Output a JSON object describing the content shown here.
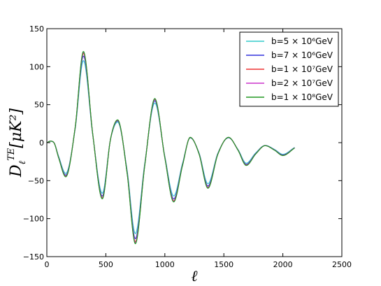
{
  "chart_data": {
    "type": "line",
    "title": "",
    "xlabel": "ℓ",
    "ylabel_main": "D",
    "ylabel_sub": "ℓ",
    "ylabel_sup": "TE",
    "ylabel_unit": "[μK²]",
    "xlim": [
      0,
      2500
    ],
    "ylim": [
      -150,
      150
    ],
    "x_ticks": [
      "0",
      "500",
      "1000",
      "1500",
      "2000",
      "2500"
    ],
    "y_ticks": [
      "150",
      "100",
      "50",
      "0",
      "−50",
      "−100",
      "−150"
    ],
    "grid": false,
    "legend_position": "top-right",
    "series": [
      {
        "name": "b=5 × 10⁶GeV",
        "color": "#33cccc",
        "amp_scale": 0.9
      },
      {
        "name": "b=7 × 10⁶GeV",
        "color": "#3333dd",
        "amp_scale": 0.95
      },
      {
        "name": "b=1 × 10⁷GeV",
        "color": "#ee3333",
        "amp_scale": 0.98
      },
      {
        "name": "b=2 × 10⁷GeV",
        "color": "#cc33cc",
        "amp_scale": 0.99
      },
      {
        "name": "b=1 × 10⁸GeV",
        "color": "#229922",
        "amp_scale": 1.0
      }
    ],
    "x": [
      2,
      30,
      60,
      100,
      160,
      240,
      310,
      390,
      470,
      540,
      600,
      680,
      750,
      830,
      915,
      1000,
      1075,
      1150,
      1215,
      1290,
      1365,
      1450,
      1540,
      1620,
      1690,
      1770,
      1850,
      1930,
      2000,
      2100
    ],
    "y": [
      0,
      2,
      0,
      -20,
      -45,
      20,
      120,
      10,
      -74,
      5,
      30,
      -40,
      -133,
      -30,
      58,
      -20,
      -78,
      -30,
      7,
      -15,
      -60,
      -15,
      7,
      -10,
      -30,
      -15,
      -4,
      -10,
      -17,
      -7
    ]
  }
}
